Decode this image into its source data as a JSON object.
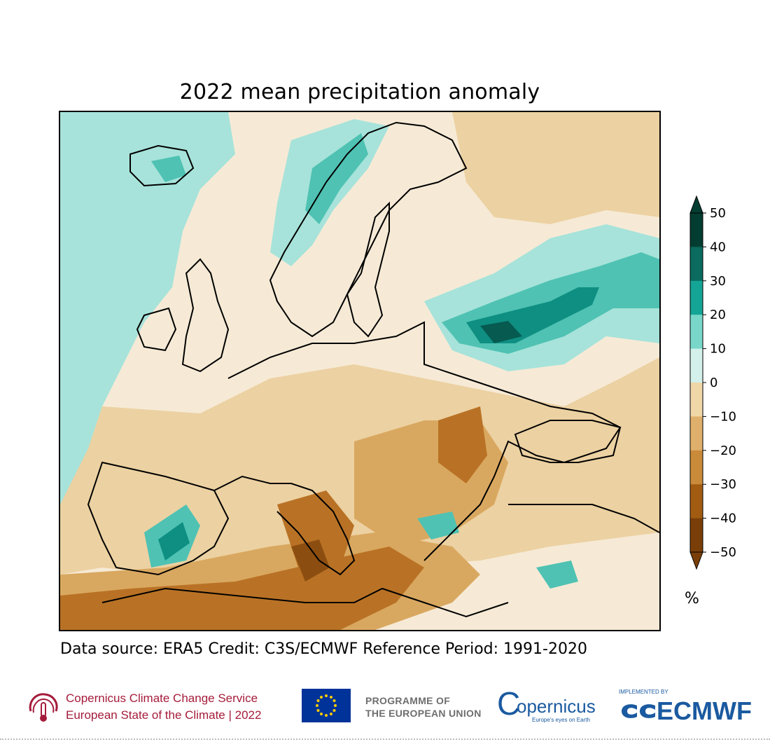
{
  "title": "2022 mean precipitation anomaly",
  "colorbar": {
    "ticks": [
      "50",
      "40",
      "30",
      "20",
      "10",
      "0",
      "−10",
      "−20",
      "−30",
      "−40",
      "−50"
    ],
    "unit": "%",
    "colors": [
      "#033d31",
      "#0a6b5e",
      "#14a596",
      "#78d7c8",
      "#d3f0ea",
      "#fbf0df",
      "#f0d7a8",
      "#dfb06b",
      "#c98a3a",
      "#a25c12",
      "#7a3f08"
    ],
    "range": [
      -50,
      50
    ],
    "extend": "both"
  },
  "map": {
    "region": "Europe",
    "colors": {
      "land_neutral": "#f6ead6",
      "wet_light": "#a7e3da",
      "wet_mid": "#4fc2b3",
      "wet_dark": "#0e8f82",
      "wet_darkest": "#065a50",
      "dry_light": "#ecd1a2",
      "dry_mid": "#d9a860",
      "dry_dark": "#b97225",
      "dry_darkest": "#8c4e10",
      "coastline": "#000000"
    }
  },
  "footnote": "Data source: ERA5  Credit: C3S/ECMWF  Reference Period: 1991-2020",
  "logos": {
    "c3s_line1": "Copernicus Climate Change Service",
    "c3s_line2": "European State of the Climate | 2022",
    "programme_line1": "PROGRAMME OF",
    "programme_line2": "THE EUROPEAN UNION",
    "copernicus": "opernicus",
    "copernicus_c": "C",
    "copernicus_tagline": "Europe's eyes on Earth",
    "ecmwf_small": "IMPLEMENTED BY",
    "ecmwf": "ECMWF"
  }
}
